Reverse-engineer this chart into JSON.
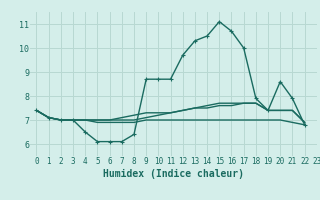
{
  "xlabel": "Humidex (Indice chaleur)",
  "ylabel": "",
  "bg_color": "#d4eeea",
  "grid_color": "#b8d8d2",
  "line_color": "#1a6b60",
  "xlim": [
    -0.5,
    23
  ],
  "ylim": [
    5.5,
    11.5
  ],
  "xticks": [
    0,
    1,
    2,
    3,
    4,
    5,
    6,
    7,
    8,
    9,
    10,
    11,
    12,
    13,
    14,
    15,
    16,
    17,
    18,
    19,
    20,
    21,
    22,
    23
  ],
  "yticks": [
    6,
    7,
    8,
    9,
    10,
    11
  ],
  "series": [
    [
      7.4,
      7.1,
      7.0,
      7.0,
      6.5,
      6.1,
      6.1,
      6.1,
      6.4,
      8.7,
      8.7,
      8.7,
      9.7,
      10.3,
      10.5,
      11.1,
      10.7,
      10.0,
      7.9,
      7.4,
      8.6,
      7.9,
      6.8
    ],
    [
      7.4,
      7.1,
      7.0,
      7.0,
      7.0,
      7.0,
      7.0,
      7.1,
      7.2,
      7.3,
      7.3,
      7.3,
      7.4,
      7.5,
      7.5,
      7.6,
      7.6,
      7.7,
      7.7,
      7.4,
      7.4,
      7.4,
      6.9
    ],
    [
      7.4,
      7.1,
      7.0,
      7.0,
      7.0,
      7.0,
      7.0,
      7.0,
      7.0,
      7.1,
      7.2,
      7.3,
      7.4,
      7.5,
      7.6,
      7.7,
      7.7,
      7.7,
      7.7,
      7.4,
      7.4,
      7.4,
      6.9
    ],
    [
      7.4,
      7.1,
      7.0,
      7.0,
      7.0,
      6.9,
      6.9,
      6.9,
      6.9,
      7.0,
      7.0,
      7.0,
      7.0,
      7.0,
      7.0,
      7.0,
      7.0,
      7.0,
      7.0,
      7.0,
      7.0,
      6.9,
      6.8
    ]
  ],
  "marker": "+",
  "marker_size": 3,
  "line_width": 1.0,
  "tick_fontsize": 5.5,
  "xlabel_fontsize": 7
}
